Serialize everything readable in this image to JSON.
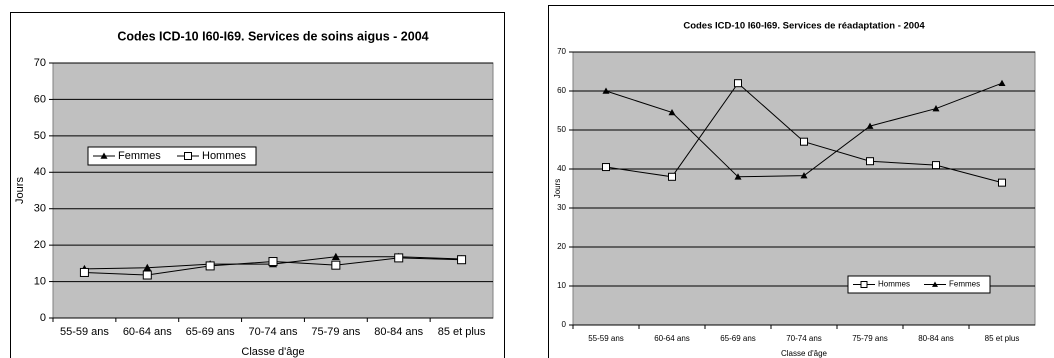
{
  "chart_data": [
    {
      "type": "line",
      "title": "Codes ICD-10 I60-I69. Services de soins aigus - 2004",
      "x_label": "Classe d'âge",
      "y_label": "Jours",
      "categories": [
        "55-59 ans",
        "60-64 ans",
        "65-69 ans",
        "70-74 ans",
        "75-79 ans",
        "80-84 ans",
        "85 et plus"
      ],
      "series": [
        {
          "name": "Femmes",
          "color": "#000000",
          "marker": "triangle",
          "values": [
            13.5,
            13.8,
            14.8,
            14.8,
            16.8,
            16.8,
            16.2
          ]
        },
        {
          "name": "Hommes",
          "color": "#000000",
          "marker": "square",
          "values": [
            12.5,
            11.8,
            14.3,
            15.5,
            14.5,
            16.5,
            16.0
          ]
        }
      ],
      "ylim": [
        0,
        70
      ],
      "yticks": [
        0,
        10,
        20,
        30,
        40,
        50,
        60,
        70
      ],
      "grid": true
    },
    {
      "type": "line",
      "title": "Codes ICD-10 I60-I69. Services de réadaptation - 2004",
      "x_label": "Classe d'âge",
      "y_label": "Jours",
      "categories": [
        "55-59 ans",
        "60-64 ans",
        "65-69 ans",
        "70-74 ans",
        "75-79 ans",
        "80-84 ans",
        "85 et plus"
      ],
      "series": [
        {
          "name": "Hommes",
          "color": "#000000",
          "marker": "square",
          "values": [
            40.5,
            38,
            62,
            47,
            42,
            41,
            36.5
          ]
        },
        {
          "name": "Femmes",
          "color": "#000000",
          "marker": "triangle",
          "values": [
            60,
            54.5,
            38,
            38.3,
            51,
            55.5,
            62
          ]
        }
      ],
      "ylim": [
        0,
        70
      ],
      "yticks": [
        0,
        10,
        20,
        30,
        40,
        50,
        60,
        70
      ],
      "grid": true
    }
  ]
}
